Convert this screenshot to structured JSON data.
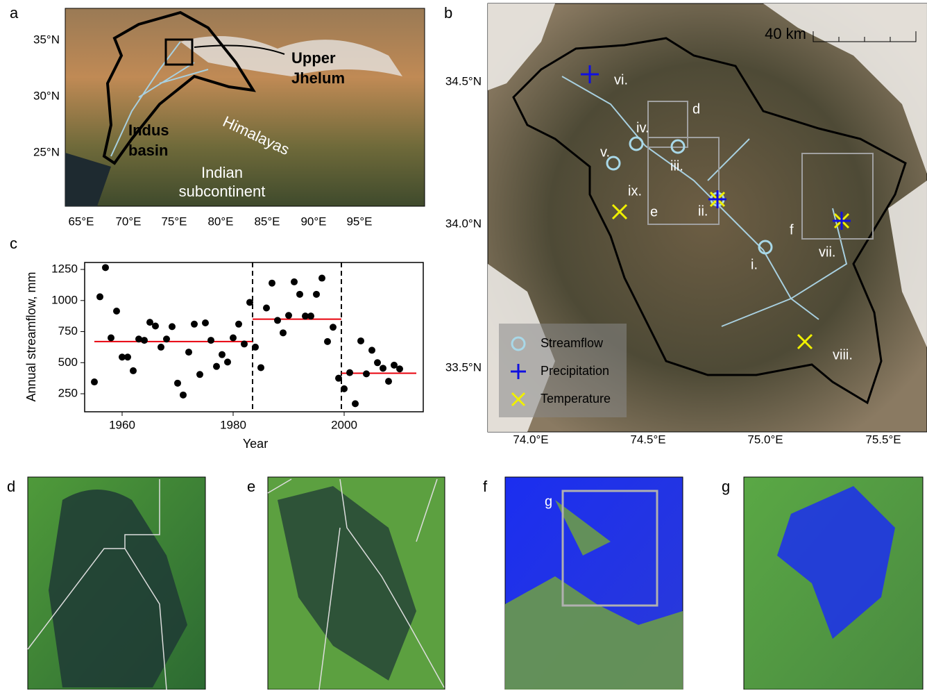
{
  "panel_labels": [
    "a",
    "b",
    "c",
    "d",
    "e",
    "f",
    "g"
  ],
  "map_a": {
    "lat_ticks": [
      "35°N",
      "30°N",
      "25°N"
    ],
    "lon_ticks": [
      "65°E",
      "70°E",
      "75°E",
      "80°E",
      "85°E",
      "90°E",
      "95°E"
    ],
    "upper_jhelum": [
      "Upper",
      "Jhelum"
    ],
    "indus_basin": [
      "Indus",
      "basin"
    ],
    "himalayas": "Himalayas",
    "subcontinent": [
      "Indian",
      "subcontinent"
    ]
  },
  "map_b": {
    "lat_ticks": [
      "34.5°N",
      "34.0°N",
      "33.5°N"
    ],
    "lon_ticks": [
      "74.0°E",
      "74.5°E",
      "75.0°E",
      "75.5°E"
    ],
    "scale": "40 km",
    "boxes": [
      "d",
      "e",
      "f"
    ],
    "sites": [
      "i.",
      "ii.",
      "iii.",
      "iv.",
      "v.",
      "vi.",
      "vii.",
      "viii.",
      "ix."
    ],
    "legend": [
      "Streamflow",
      "Precipitation",
      "Temperature"
    ]
  },
  "panel_f": {
    "box": "g"
  },
  "chart_data": {
    "type": "scatter",
    "xlabel": "Year",
    "ylabel": "Annual streamflow, mm",
    "x": [
      1955,
      1956,
      1957,
      1958,
      1959,
      1960,
      1961,
      1962,
      1963,
      1964,
      1965,
      1966,
      1967,
      1968,
      1969,
      1970,
      1971,
      1972,
      1973,
      1974,
      1975,
      1976,
      1977,
      1978,
      1979,
      1980,
      1981,
      1982,
      1983,
      1984,
      1985,
      1986,
      1987,
      1988,
      1989,
      1990,
      1991,
      1992,
      1993,
      1994,
      1995,
      1996,
      1997,
      1998,
      1999,
      2000,
      2001,
      2002,
      2003,
      2004,
      2005,
      2006,
      2007,
      2008,
      2009,
      2010
    ],
    "values": [
      345,
      1030,
      1265,
      700,
      915,
      545,
      545,
      435,
      690,
      680,
      825,
      795,
      625,
      690,
      790,
      335,
      240,
      585,
      810,
      405,
      820,
      680,
      470,
      565,
      505,
      700,
      810,
      650,
      985,
      625,
      460,
      940,
      1140,
      840,
      740,
      880,
      1150,
      1050,
      875,
      875,
      1050,
      1180,
      670,
      785,
      375,
      290,
      420,
      170,
      675,
      410,
      600,
      500,
      455,
      350,
      480,
      450
    ],
    "color": "#000000",
    "means": [
      {
        "start": 1955,
        "end": 1983.5,
        "value": 670
      },
      {
        "start": 1983.5,
        "end": 1999.5,
        "value": 850
      },
      {
        "start": 1999.5,
        "end": 2013,
        "value": 415
      }
    ],
    "mean_color": "#e8000b",
    "breaks": [
      1983.5,
      1999.5
    ],
    "xlim": [
      1953.25,
      2014.25
    ],
    "ylim": [
      105,
      1306
    ],
    "xticks": [
      1960,
      1980,
      2000
    ],
    "yticks": [
      250,
      500,
      750,
      1000,
      1250
    ]
  }
}
